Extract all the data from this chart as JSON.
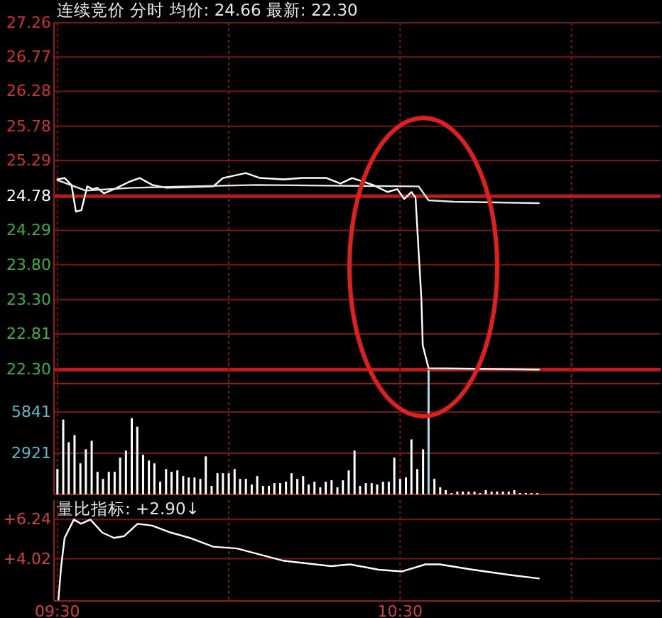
{
  "chart_data": [
    {
      "type": "line",
      "title": "连续竞价  分时 均价: 24.66 最新: 22.30",
      "xlim": [
        9.49,
        11.26
      ],
      "ylim": [
        22.1,
        27.26
      ],
      "yticks": [
        {
          "value": 22.3,
          "label": "22.30"
        },
        22.81,
        {
          "value": 23.3,
          "label": "23.30"
        },
        {
          "value": 23.8,
          "label": "23.80"
        },
        24.29,
        24.78,
        25.29,
        25.78,
        26.28,
        26.77,
        27.26
      ],
      "xticks": [
        {
          "value": 9.5,
          "label": null
        },
        {
          "value": 10,
          "label": null
        },
        {
          "value": 10.5,
          "label": null
        },
        {
          "value": 11,
          "label": null
        }
      ],
      "tick_labels": "y",
      "grid": true,
      "ref_lines": [
        {
          "axis": "y",
          "value": 24.78,
          "color": "#b81c1c"
        },
        {
          "axis": "y",
          "value": 22.3,
          "color": "#b81c1c"
        }
      ],
      "series": [
        {
          "color": "#ffffff",
          "x": [
            9.5,
            9.521,
            9.541,
            9.554,
            9.57,
            9.587,
            9.603,
            9.616,
            9.636,
            9.665,
            9.707,
            9.74,
            9.777,
            9.818,
            9.955,
            9.983,
            10.05,
            10.091,
            10.161,
            10.215,
            10.285,
            10.326,
            10.36,
            10.421,
            10.463,
            10.492,
            10.512,
            10.533,
            10.545,
            10.554,
            10.562,
            10.566,
            10.583,
            10.905
          ],
          "values": [
            25.02,
            25.04,
            24.94,
            24.56,
            24.58,
            24.92,
            24.88,
            24.9,
            24.82,
            24.88,
            24.98,
            25.04,
            24.94,
            24.9,
            24.92,
            25.04,
            25.11,
            25.04,
            25.02,
            25.04,
            25.04,
            24.96,
            25.04,
            24.94,
            24.84,
            24.88,
            24.74,
            24.84,
            24.76,
            23.99,
            23.32,
            22.65,
            22.32,
            22.3
          ]
        },
        {
          "color": "#e8e8d8",
          "x": [
            9.5,
            9.583,
            9.719,
            10.079,
            10.554,
            10.583,
            10.657,
            10.905
          ],
          "values": [
            25.01,
            24.86,
            24.9,
            24.94,
            24.92,
            24.72,
            24.7,
            24.68
          ]
        }
      ]
    },
    {
      "type": "bar",
      "xlim": [
        9.49,
        11.26
      ],
      "ylim": [
        0,
        9360
      ],
      "yticks": [
        2921,
        5841
      ],
      "xticks": [
        {
          "value": 9.5,
          "label": null
        },
        {
          "value": 10,
          "label": null
        },
        {
          "value": 10.5,
          "label": null
        },
        {
          "value": 11,
          "label": null
        }
      ],
      "tick_labels": "y",
      "grid": true,
      "x": [
        9.5,
        9.517,
        9.533,
        9.55,
        9.567,
        9.583,
        9.6,
        9.617,
        9.633,
        9.65,
        9.667,
        9.683,
        9.7,
        9.717,
        9.733,
        9.75,
        9.767,
        9.783,
        9.8,
        9.817,
        9.833,
        9.85,
        9.867,
        9.883,
        9.9,
        9.917,
        9.933,
        9.95,
        9.967,
        9.983,
        10.0,
        10.017,
        10.033,
        10.05,
        10.067,
        10.083,
        10.1,
        10.117,
        10.133,
        10.15,
        10.167,
        10.183,
        10.2,
        10.217,
        10.233,
        10.25,
        10.267,
        10.283,
        10.3,
        10.317,
        10.333,
        10.35,
        10.367,
        10.383,
        10.4,
        10.417,
        10.433,
        10.45,
        10.467,
        10.483,
        10.5,
        10.517,
        10.533,
        10.55,
        10.567,
        10.583,
        10.6,
        10.617,
        10.633,
        10.65,
        10.667,
        10.683,
        10.7,
        10.717,
        10.733,
        10.75,
        10.767,
        10.783,
        10.8,
        10.817,
        10.833,
        10.85,
        10.867,
        10.883,
        10.9
      ],
      "values": [
        1800,
        5300,
        3700,
        4200,
        2200,
        3200,
        3800,
        1600,
        1100,
        1600,
        1600,
        2600,
        3100,
        5400,
        4800,
        2800,
        2400,
        2200,
        900,
        1800,
        1600,
        1700,
        1300,
        1200,
        1200,
        1100,
        2700,
        600,
        1500,
        1500,
        1500,
        1800,
        1100,
        1100,
        700,
        1300,
        600,
        600,
        800,
        800,
        900,
        1500,
        1100,
        1300,
        700,
        900,
        500,
        900,
        1000,
        500,
        1000,
        1700,
        3100,
        600,
        800,
        800,
        700,
        900,
        900,
        2600,
        1100,
        1200,
        3900,
        1800,
        3200,
        8800,
        1100,
        500,
        300,
        100,
        200,
        200,
        200,
        200,
        100,
        300,
        200,
        200,
        200,
        200,
        300,
        100,
        100,
        100,
        100
      ],
      "colors": [
        "#ffffff",
        "#ffffff",
        "#ffffff",
        "#ffffff",
        "#ffffff",
        "#ffffff",
        "#ffffff",
        "#ffffff",
        "#ffffff",
        "#ffffff",
        "#ffffff",
        "#ffffff",
        "#ffffff",
        "#ffffff",
        "#ffffff",
        "#ffffff",
        "#ffffff",
        "#ffffff",
        "#ffffff",
        "#ffffff",
        "#ffffff",
        "#ffffff",
        "#ffffff",
        "#ffffff",
        "#ffffff",
        "#ffffff",
        "#ffffff",
        "#ffffff",
        "#ffffff",
        "#ffffff",
        "#ffffff",
        "#ffffff",
        "#ffffff",
        "#ffffff",
        "#ffffff",
        "#ffffff",
        "#ffffff",
        "#ffffff",
        "#ffffff",
        "#ffffff",
        "#ffffff",
        "#ffffff",
        "#ffffff",
        "#ffffff",
        "#ffffff",
        "#ffffff",
        "#ffffff",
        "#ffffff",
        "#ffffff",
        "#ffffff",
        "#ffffff",
        "#ffffff",
        "#ffffff",
        "#ffffff",
        "#ffffff",
        "#ffffff",
        "#ffffff",
        "#ffffff",
        "#ffffff",
        "#ffffff",
        "#ffffff",
        "#ffffff",
        "#ffffff",
        "#ffffff",
        "#ffffff",
        "#a8e0e8",
        "#ffffff",
        "#ffffff",
        "#ffffff",
        "#ffffff",
        "#ffffff",
        "#ffffff",
        "#ffffff",
        "#ffffff",
        "#ffffff",
        "#ffffff",
        "#ffffff",
        "#ffffff",
        "#ffffff",
        "#ffffff",
        "#ffffff",
        "#ffffff",
        "#ffffff",
        "#ffffff",
        "#ffffff"
      ]
    },
    {
      "type": "line",
      "title": "量比指标: +2.90↓",
      "xlim": [
        9.49,
        11.26
      ],
      "ylim": [
        1.63,
        7.34
      ],
      "yticks": [
        {
          "value": 4.02,
          "label": "+4.02"
        },
        {
          "value": 6.24,
          "label": "+6.24"
        }
      ],
      "xticks": [
        {
          "value": 9.5,
          "label": "09:30"
        },
        {
          "value": 10,
          "label": null
        },
        {
          "value": 10.5,
          "label": "10:30"
        },
        {
          "value": 11,
          "label": null
        }
      ],
      "grid": true,
      "series": [
        {
          "color": "#ffffff",
          "x": [
            9.503,
            9.511,
            9.521,
            9.548,
            9.569,
            9.596,
            9.631,
            9.665,
            9.695,
            9.734,
            9.776,
            9.831,
            9.886,
            9.955,
            10.024,
            10.161,
            10.299,
            10.354,
            10.437,
            10.506,
            10.574,
            10.616,
            10.712,
            10.822,
            10.905
          ],
          "values": [
            1.7,
            3.6,
            5.2,
            6.24,
            6.0,
            6.24,
            5.5,
            5.2,
            5.3,
            6.0,
            5.9,
            5.5,
            5.2,
            4.7,
            4.6,
            3.9,
            3.6,
            3.7,
            3.4,
            3.3,
            3.7,
            3.7,
            3.4,
            3.1,
            2.9
          ]
        }
      ]
    }
  ]
}
